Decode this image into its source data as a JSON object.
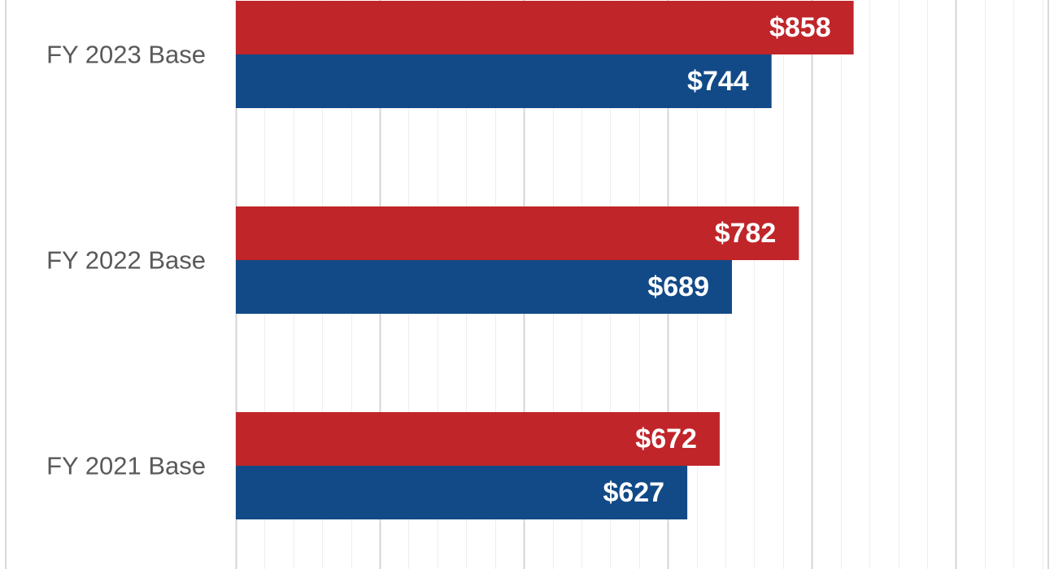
{
  "chart_data": {
    "type": "bar",
    "orientation": "horizontal",
    "categories": [
      "FY 2023 Base",
      "FY 2022 Base",
      "FY 2021 Base"
    ],
    "series": [
      {
        "color": "#c0252a",
        "values": [
          858,
          782,
          672
        ],
        "labels": [
          "$858",
          "$782",
          "$672"
        ]
      },
      {
        "color": "#124a87",
        "values": [
          744,
          689,
          627
        ],
        "labels": [
          "$744",
          "$689",
          "$627"
        ]
      }
    ],
    "xlim": [
      0,
      1125
    ],
    "major_gridline_step": 200,
    "minor_gridline_step": 40,
    "grid": true,
    "legend": "none"
  }
}
